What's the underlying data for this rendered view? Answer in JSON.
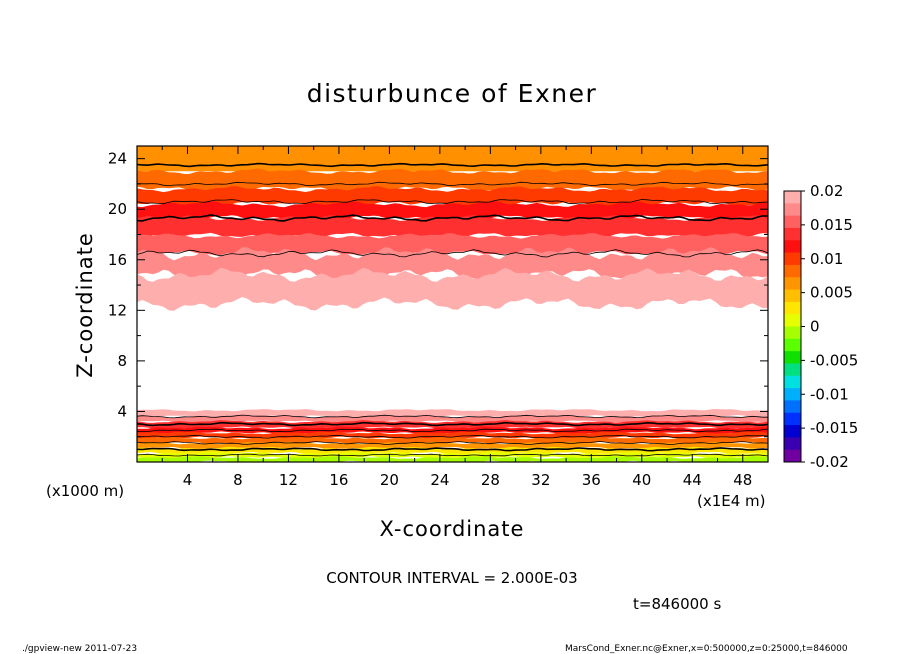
{
  "chart_data": {
    "type": "contour",
    "title": "disturbunce of Exner",
    "xlabel": "X-coordinate",
    "ylabel": "Z-coordinate",
    "x_unit_label": "(x1E4 m)",
    "y_unit_label": "(x1000 m)",
    "xlim": [
      0,
      50
    ],
    "ylim": [
      0,
      25
    ],
    "x_ticks": [
      4,
      8,
      12,
      16,
      20,
      24,
      28,
      32,
      36,
      40,
      44,
      48
    ],
    "y_ticks": [
      4,
      8,
      12,
      16,
      20,
      24
    ],
    "colorbar": {
      "range": [
        -0.02,
        0.02
      ],
      "labels": [
        "0.02",
        "0.015",
        "0.01",
        "0.005",
        "0",
        "-0.005",
        "-0.01",
        "-0.015",
        "-0.02"
      ],
      "colors": [
        "#ffaeae",
        "#ff8a8a",
        "#ff6060",
        "#ff3030",
        "#ff1010",
        "#ff3a00",
        "#ff6a00",
        "#ff9500",
        "#ffbf00",
        "#ffe600",
        "#e6ff00",
        "#a6ff00",
        "#5aff00",
        "#10e000",
        "#00e080",
        "#00e0e0",
        "#00b0ff",
        "#0070ff",
        "#0030ff",
        "#0000d0",
        "#3a00b0",
        "#7000a0"
      ]
    },
    "levels_interval": 0.002,
    "contour_interval_text": "CONTOUR INTERVAL = 2.000E-03",
    "time_text": "t=846000 s",
    "upper_bands": [
      {
        "z_low": 23.0,
        "z_high": 25.0,
        "color": "#ff9000"
      },
      {
        "z_low": 21.6,
        "z_high": 23.0,
        "color": "#ff6a00"
      },
      {
        "z_low": 20.4,
        "z_high": 21.6,
        "color": "#ff3a00"
      },
      {
        "z_low": 19.3,
        "z_high": 20.4,
        "color": "#ff1010"
      },
      {
        "z_low": 17.9,
        "z_high": 19.3,
        "color": "#ff3030"
      },
      {
        "z_low": 16.5,
        "z_high": 17.9,
        "color": "#ff6060"
      },
      {
        "z_low": 14.8,
        "z_high": 16.5,
        "color": "#ff8a8a"
      },
      {
        "z_low": 12.5,
        "z_high": 14.8,
        "color": "#ffaeae"
      }
    ],
    "lower_bands": [
      {
        "z_low": 3.6,
        "z_high": 4.1,
        "color": "#ffaeae"
      },
      {
        "z_low": 3.2,
        "z_high": 3.6,
        "color": "#ff8a8a"
      },
      {
        "z_low": 2.7,
        "z_high": 3.2,
        "color": "#ff3030"
      },
      {
        "z_low": 2.3,
        "z_high": 2.7,
        "color": "#ff1010"
      },
      {
        "z_low": 1.9,
        "z_high": 2.3,
        "color": "#ff3a00"
      },
      {
        "z_low": 1.5,
        "z_high": 1.9,
        "color": "#ff6a00"
      },
      {
        "z_low": 1.1,
        "z_high": 1.5,
        "color": "#ff9500"
      },
      {
        "z_low": 0.7,
        "z_high": 1.1,
        "color": "#ffe600"
      },
      {
        "z_low": 0.35,
        "z_high": 0.7,
        "color": "#e6ff00"
      },
      {
        "z_low": 0.0,
        "z_high": 0.35,
        "color": "#a6ff00"
      }
    ]
  },
  "footer": {
    "left": "./gpview-new  2011-07-23",
    "right": "MarsCond_Exner.nc@Exner,x=0:500000,z=0:25000,t=846000"
  }
}
